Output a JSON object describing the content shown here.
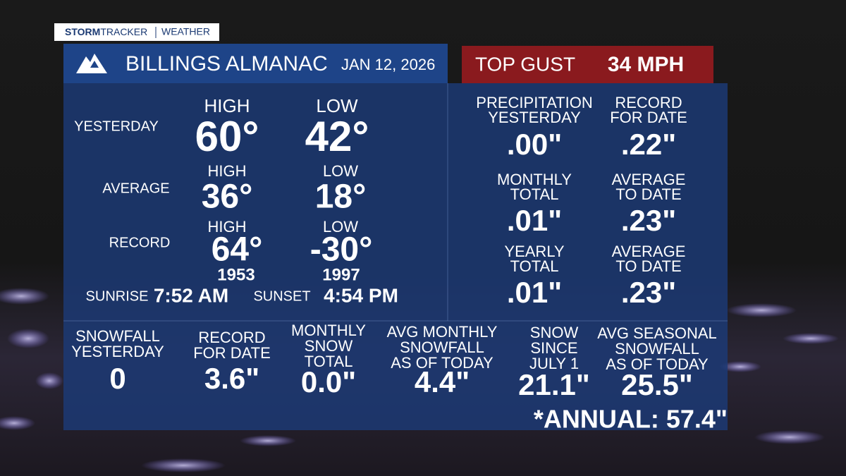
{
  "brand": {
    "strong": "STORM",
    "light": "TRACKER",
    "section": "WEATHER"
  },
  "header": {
    "title": "BILLINGS ALMANAC",
    "date": "JAN 12, 2026"
  },
  "gust": {
    "label": "TOP GUST",
    "value": "34 MPH"
  },
  "temperature": {
    "yesterday": {
      "label": "YESTERDAY",
      "high_label": "HIGH",
      "high": "60°",
      "low_label": "LOW",
      "low": "42°"
    },
    "average": {
      "label": "AVERAGE",
      "high_label": "HIGH",
      "high": "36°",
      "low_label": "LOW",
      "low": "18°"
    },
    "record": {
      "label": "RECORD",
      "high_label": "HIGH",
      "high": "64°",
      "high_year": "1953",
      "low_label": "LOW",
      "low": "-30°",
      "low_year": "1997"
    }
  },
  "sun": {
    "sunrise_label": "SUNRISE",
    "sunrise": "7:52 AM",
    "sunset_label": "SUNSET",
    "sunset": "4:54 PM"
  },
  "precipitation": [
    {
      "label": [
        "PRECIPITATION",
        "YESTERDAY"
      ],
      "value": ".00\""
    },
    {
      "label": [
        "RECORD",
        "FOR DATE"
      ],
      "value": ".22\""
    },
    {
      "label": [
        "MONTHLY",
        "TOTAL"
      ],
      "value": ".01\""
    },
    {
      "label": [
        "AVERAGE",
        "TO DATE"
      ],
      "value": ".23\""
    },
    {
      "label": [
        "YEARLY",
        "TOTAL"
      ],
      "value": ".01\""
    },
    {
      "label": [
        "AVERAGE",
        "TO DATE"
      ],
      "value": ".23\""
    }
  ],
  "snowfall": [
    {
      "label": [
        "SNOWFALL",
        "YESTERDAY"
      ],
      "value": "0"
    },
    {
      "label": [
        "RECORD",
        "FOR DATE"
      ],
      "value": "3.6\""
    },
    {
      "label": [
        "MONTHLY",
        "SNOW",
        "TOTAL"
      ],
      "value": "0.0\""
    },
    {
      "label": [
        "AVG MONTHLY",
        "SNOWFALL",
        "AS OF TODAY"
      ],
      "value": "4.4\""
    },
    {
      "label": [
        "SNOW",
        "SINCE",
        "JULY 1"
      ],
      "value": "21.1\""
    },
    {
      "label": [
        "AVG SEASONAL",
        "SNOWFALL",
        "AS OF TODAY"
      ],
      "value": "25.5\""
    }
  ],
  "annual": "*ANNUAL: 57.4\""
}
